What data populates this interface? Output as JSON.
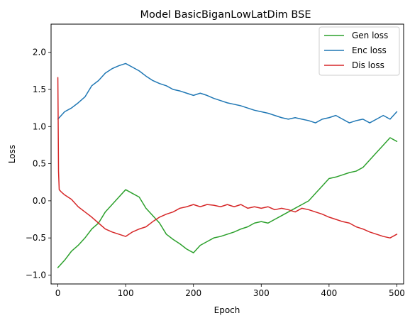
{
  "chart_data": {
    "type": "line",
    "title": "Model BasicBiganLowLatDim BSE",
    "xlabel": "Epoch",
    "ylabel": "Loss",
    "xlim": [
      -10,
      510
    ],
    "ylim": [
      -1.12,
      2.38
    ],
    "xticks": [
      0,
      100,
      200,
      300,
      400,
      500
    ],
    "yticks": [
      -1.0,
      -0.5,
      0.0,
      0.5,
      1.0,
      1.5,
      2.0
    ],
    "ytick_labels": [
      "−1.0",
      "−0.5",
      "0.0",
      "0.5",
      "1.0",
      "1.5",
      "2.0"
    ],
    "grid": false,
    "legend_position": "top-right",
    "series": [
      {
        "name": "Gen loss",
        "color": "#2ca02c",
        "x": [
          0,
          10,
          20,
          30,
          40,
          50,
          60,
          70,
          80,
          90,
          100,
          110,
          120,
          130,
          140,
          150,
          160,
          170,
          180,
          190,
          200,
          210,
          220,
          230,
          240,
          250,
          260,
          270,
          280,
          290,
          300,
          310,
          320,
          330,
          340,
          350,
          360,
          370,
          380,
          390,
          400,
          410,
          420,
          430,
          440,
          450,
          460,
          470,
          480,
          490,
          500
        ],
        "y": [
          -0.9,
          -0.8,
          -0.68,
          -0.6,
          -0.5,
          -0.38,
          -0.3,
          -0.15,
          -0.05,
          0.05,
          0.15,
          0.1,
          0.05,
          -0.1,
          -0.2,
          -0.3,
          -0.45,
          -0.52,
          -0.58,
          -0.65,
          -0.7,
          -0.6,
          -0.55,
          -0.5,
          -0.48,
          -0.45,
          -0.42,
          -0.38,
          -0.35,
          -0.3,
          -0.28,
          -0.3,
          -0.25,
          -0.2,
          -0.15,
          -0.1,
          -0.05,
          0.0,
          0.1,
          0.2,
          0.3,
          0.32,
          0.35,
          0.38,
          0.4,
          0.45,
          0.55,
          0.65,
          0.75,
          0.85,
          0.8
        ]
      },
      {
        "name": "Enc loss",
        "color": "#1f77b4",
        "x": [
          0,
          10,
          20,
          30,
          40,
          50,
          60,
          70,
          80,
          90,
          100,
          110,
          120,
          130,
          140,
          150,
          160,
          170,
          180,
          190,
          200,
          210,
          220,
          230,
          240,
          250,
          260,
          270,
          280,
          290,
          300,
          310,
          320,
          330,
          340,
          350,
          360,
          370,
          380,
          390,
          400,
          410,
          420,
          430,
          440,
          450,
          460,
          470,
          480,
          490,
          500
        ],
        "y": [
          1.1,
          1.2,
          1.25,
          1.32,
          1.4,
          1.55,
          1.62,
          1.72,
          1.78,
          1.82,
          1.85,
          1.8,
          1.75,
          1.68,
          1.62,
          1.58,
          1.55,
          1.5,
          1.48,
          1.45,
          1.42,
          1.45,
          1.42,
          1.38,
          1.35,
          1.32,
          1.3,
          1.28,
          1.25,
          1.22,
          1.2,
          1.18,
          1.15,
          1.12,
          1.1,
          1.12,
          1.1,
          1.08,
          1.05,
          1.1,
          1.12,
          1.15,
          1.1,
          1.05,
          1.08,
          1.1,
          1.05,
          1.1,
          1.15,
          1.1,
          1.2
        ]
      },
      {
        "name": "Dis loss",
        "color": "#d62728",
        "x": [
          0,
          1,
          2,
          5,
          10,
          20,
          30,
          40,
          50,
          60,
          70,
          80,
          90,
          100,
          110,
          120,
          130,
          140,
          150,
          160,
          170,
          180,
          190,
          200,
          210,
          220,
          230,
          240,
          250,
          260,
          270,
          280,
          290,
          300,
          310,
          320,
          330,
          340,
          350,
          360,
          370,
          380,
          390,
          400,
          410,
          420,
          430,
          440,
          450,
          460,
          470,
          480,
          490,
          500
        ],
        "y": [
          1.66,
          0.4,
          0.15,
          0.12,
          0.08,
          0.02,
          -0.08,
          -0.15,
          -0.22,
          -0.3,
          -0.38,
          -0.42,
          -0.45,
          -0.48,
          -0.42,
          -0.38,
          -0.35,
          -0.28,
          -0.22,
          -0.18,
          -0.15,
          -0.1,
          -0.08,
          -0.05,
          -0.08,
          -0.05,
          -0.06,
          -0.08,
          -0.05,
          -0.08,
          -0.05,
          -0.1,
          -0.08,
          -0.1,
          -0.08,
          -0.12,
          -0.1,
          -0.12,
          -0.15,
          -0.1,
          -0.12,
          -0.15,
          -0.18,
          -0.22,
          -0.25,
          -0.28,
          -0.3,
          -0.35,
          -0.38,
          -0.42,
          -0.45,
          -0.48,
          -0.5,
          -0.45
        ]
      }
    ]
  }
}
